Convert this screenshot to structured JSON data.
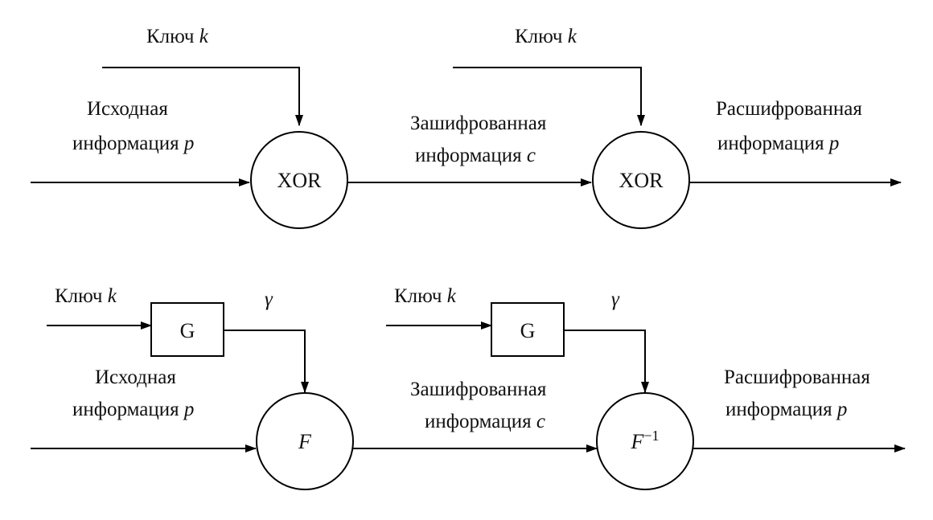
{
  "top_scheme": {
    "key1": {
      "word": "Ключ",
      "var": "k"
    },
    "key2": {
      "word": "Ключ",
      "var": "k"
    },
    "input": {
      "line1": "Исходная",
      "line2": "информация",
      "var": "p"
    },
    "encrypted": {
      "line1": "Зашифрованная",
      "line2": "информация",
      "var": "c"
    },
    "decrypted": {
      "line1": "Расшифрованная",
      "line2": "информация",
      "var": "p"
    },
    "node1": "XOR",
    "node2": "XOR"
  },
  "bottom_scheme": {
    "key1": {
      "word": "Ключ",
      "var": "k"
    },
    "key2": {
      "word": "Ключ",
      "var": "k"
    },
    "gen1": "G",
    "gen2": "G",
    "gamma1": "γ",
    "gamma2": "γ",
    "input": {
      "line1": "Исходная",
      "line2": "информация",
      "var": "p"
    },
    "encrypted": {
      "line1": "Зашифрованная",
      "line2": "информация",
      "var": "c"
    },
    "decrypted": {
      "line1": "Расшифрованная",
      "line2": "информация",
      "var": "p"
    },
    "node1": "F",
    "node2_base": "F",
    "node2_sup": "−1"
  }
}
